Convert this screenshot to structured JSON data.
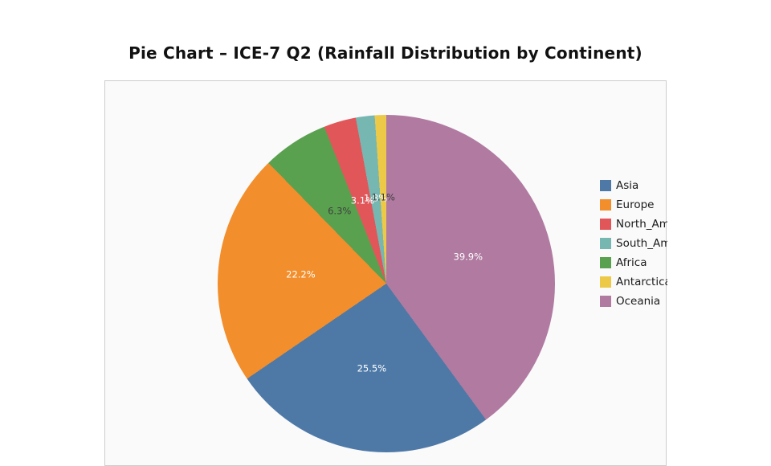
{
  "chart_data": {
    "type": "pie",
    "title": "Pie Chart – ICE-7 Q2 (Rainfall Distribution by Continent)",
    "unit": "%",
    "categories": [
      "Asia",
      "Europe",
      "North_America",
      "South_America",
      "Africa",
      "Antarctica",
      "Oceania"
    ],
    "values": [
      25.5,
      22.2,
      3.1,
      1.8,
      6.3,
      1.1,
      39.9
    ],
    "colors": [
      "#4E79A7",
      "#F28E2B",
      "#E15759",
      "#76B7B2",
      "#59A14F",
      "#EDC948",
      "#B07AA1"
    ],
    "pct_labels": [
      "25.5%",
      "22.2%",
      "3.1%",
      "1.8%",
      "6.3%",
      "1.1%",
      "39.9%"
    ],
    "pct_label_colors": [
      "#ffffff",
      "#ffffff",
      "#ffffff",
      "#ffffff",
      "#3f3f3f",
      "#3f3f3f",
      "#ffffff"
    ],
    "draw_order_clockwise_from_top": [
      "Oceania",
      "Asia",
      "Europe",
      "Africa",
      "North_America",
      "South_America",
      "Antarctica"
    ],
    "legend_position": "right",
    "legend_labels": [
      "Asia",
      "Europe",
      "North_America",
      "South_America",
      "Africa",
      "Antarctica",
      "Oceania"
    ],
    "pct_distance": 0.51
  }
}
